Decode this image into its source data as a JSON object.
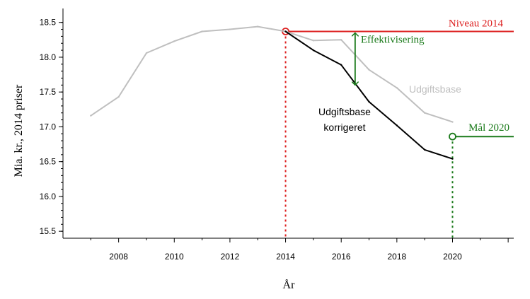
{
  "chart_data": {
    "type": "line",
    "xlabel": "År",
    "ylabel": "Mia. kr., 2014 priser",
    "xlim": [
      2006,
      2022.2
    ],
    "ylim": [
      15.4,
      18.7
    ],
    "xticks": [
      2008,
      2010,
      2012,
      2014,
      2016,
      2018,
      2020
    ],
    "yticks": [
      15.5,
      16.0,
      16.5,
      17.0,
      17.5,
      18.0,
      18.5
    ],
    "ytick_labels": [
      "15.5",
      "16.0",
      "16.5",
      "17.0",
      "17.5",
      "18.0",
      "18.5"
    ],
    "grid": false,
    "series": [
      {
        "name": "Udgiftsbase",
        "color": "#bfbfbf",
        "x": [
          2007,
          2008,
          2009,
          2010,
          2011,
          2012,
          2013,
          2014,
          2015,
          2016,
          2017,
          2018,
          2019,
          2020
        ],
        "y": [
          17.16,
          17.43,
          18.06,
          18.23,
          18.37,
          18.4,
          18.44,
          18.37,
          18.24,
          18.25,
          17.82,
          17.56,
          17.2,
          17.07
        ]
      },
      {
        "name": "Udgiftsbase korrigeret",
        "color": "#000000",
        "x": [
          2014,
          2015,
          2016,
          2017,
          2018,
          2019,
          2020
        ],
        "y": [
          18.37,
          18.1,
          17.89,
          17.36,
          17.02,
          16.67,
          16.54
        ]
      }
    ],
    "reference_lines": [
      {
        "label": "Niveau 2014",
        "color": "#dd2222",
        "value": 18.37,
        "from_x": 2014
      },
      {
        "label": "Mål 2020",
        "color": "#1a7a1a",
        "value": 16.86,
        "from_x": 2020
      }
    ],
    "arrow": {
      "label": "Effektivisering",
      "color": "#1a7a1a",
      "x": 2016.5,
      "from": 18.37,
      "to": 17.6
    },
    "annotations": {
      "udgiftsbase": "Udgiftsbase",
      "korrigeret_line1": "Udgiftsbase",
      "korrigeret_line2": "korrigeret"
    }
  }
}
